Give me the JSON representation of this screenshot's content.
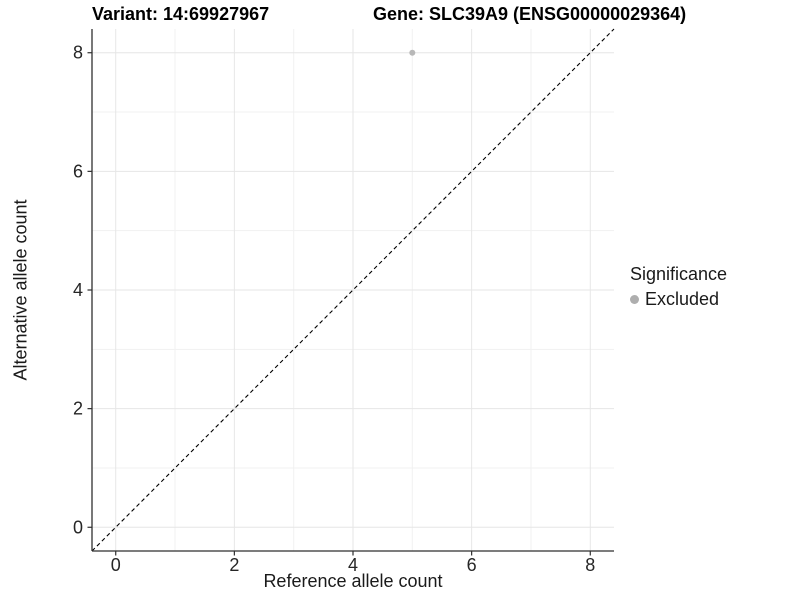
{
  "chart_data": {
    "type": "scatter",
    "title_left": "Variant: 14:69927967",
    "title_right": "Gene: SLC39A9 (ENSG00000029364)",
    "xlabel": "Reference allele count",
    "ylabel": "Alternative allele count",
    "xlim": [
      -0.4,
      8.4
    ],
    "ylim": [
      -0.4,
      8.4
    ],
    "xticks": [
      0,
      2,
      4,
      6,
      8
    ],
    "yticks": [
      0,
      2,
      4,
      6,
      8
    ],
    "minor_xticks": [
      1,
      3,
      5,
      7
    ],
    "minor_yticks": [
      1,
      3,
      5,
      7
    ],
    "grid": true,
    "points": [
      {
        "x": 5,
        "y": 8,
        "significance": "Excluded"
      }
    ],
    "identity_line": {
      "style": "dashed",
      "from": -0.4,
      "to": 8.4
    },
    "legend": {
      "title": "Significance",
      "position": "right",
      "items": [
        {
          "label": "Excluded",
          "color": "#aeaeae"
        }
      ]
    },
    "colors": {
      "point": "#b8b8b8",
      "grid_major": "#e6e6e6",
      "grid_minor": "#f1f1f1",
      "axis_line": "#2f2f2f",
      "tick_label": "#262626",
      "identity_line": "#000000",
      "background": "#ffffff"
    }
  }
}
